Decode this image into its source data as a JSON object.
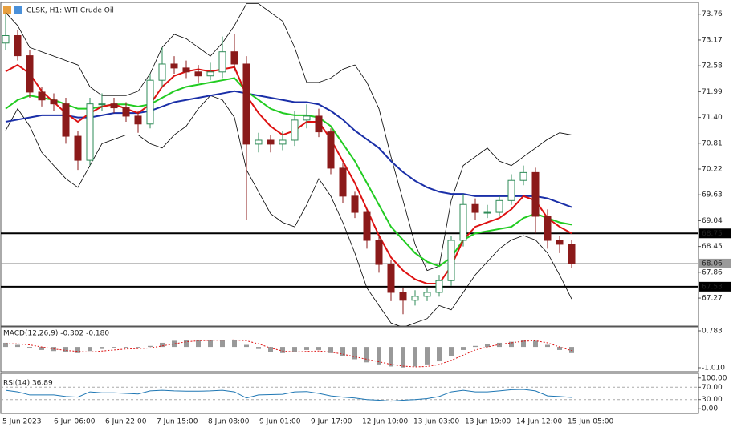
{
  "chart_data": [
    {
      "type": "candlestick",
      "title": "CLSK, H1: WTI Crude Oil",
      "ylim": [
        66.63,
        74.03
      ],
      "yticks": [
        73.76,
        73.17,
        72.58,
        71.99,
        {
          "value": 71.4,
          "label": "71.40"
        },
        70.81,
        70.22,
        69.63,
        69.04,
        68.45,
        67.86,
        67.27
      ],
      "open": [
        73.1,
        73.27,
        72.81,
        71.98,
        71.8,
        71.71,
        70.97,
        70.42,
        71.71,
        71.71,
        71.62,
        71.43,
        71.25,
        72.25,
        72.62,
        72.53,
        72.44,
        72.35,
        72.44,
        72.9,
        72.62,
        70.79,
        70.88,
        70.79,
        70.88,
        71.34,
        71.43,
        71.07,
        70.24,
        69.6,
        69.23,
        68.59,
        68.04,
        67.4,
        67.22,
        67.31,
        67.4,
        67.67,
        68.59,
        69.41,
        69.23,
        69.23,
        69.5,
        69.96,
        70.14,
        69.14,
        68.59,
        68.5
      ],
      "high": [
        73.75,
        73.4,
        72.95,
        72.1,
        71.95,
        71.85,
        71.1,
        71.85,
        71.95,
        71.85,
        71.75,
        71.55,
        72.4,
        73.0,
        72.8,
        72.7,
        72.6,
        72.65,
        73.25,
        73.3,
        72.8,
        71.05,
        71.0,
        71.1,
        71.55,
        71.7,
        71.6,
        71.15,
        70.35,
        69.7,
        69.3,
        68.7,
        68.15,
        67.5,
        67.45,
        67.5,
        67.8,
        68.7,
        69.65,
        69.55,
        69.4,
        69.6,
        70.1,
        70.3,
        70.25,
        69.3,
        68.7,
        68.6
      ],
      "low": [
        72.95,
        72.7,
        71.85,
        71.65,
        71.55,
        70.8,
        70.2,
        70.3,
        71.55,
        71.5,
        71.3,
        71.05,
        71.15,
        72.1,
        72.4,
        72.3,
        72.2,
        72.25,
        72.3,
        72.45,
        69.05,
        70.6,
        70.6,
        70.65,
        70.75,
        71.15,
        70.95,
        70.1,
        69.45,
        69.1,
        68.4,
        67.85,
        67.2,
        66.9,
        67.1,
        67.2,
        67.3,
        67.55,
        68.45,
        69.05,
        69.1,
        69.15,
        69.4,
        69.85,
        68.75,
        68.4,
        68.3,
        67.95
      ],
      "close": [
        73.27,
        72.81,
        71.98,
        71.8,
        71.71,
        70.97,
        70.42,
        71.71,
        71.71,
        71.62,
        71.43,
        71.25,
        72.25,
        72.62,
        72.53,
        72.44,
        72.35,
        72.44,
        72.9,
        72.62,
        70.79,
        70.88,
        70.79,
        70.88,
        71.34,
        71.43,
        71.07,
        70.24,
        69.6,
        69.23,
        68.59,
        68.04,
        67.4,
        67.22,
        67.31,
        67.4,
        67.67,
        68.59,
        69.41,
        69.23,
        69.23,
        69.5,
        69.96,
        70.14,
        69.14,
        68.59,
        68.5,
        68.06
      ],
      "up_color": "#2e8b57",
      "down_color": "#8b1a1a",
      "lines": [
        {
          "color": "#000000",
          "width": 0.8,
          "values": [
            73.8,
            73.5,
            73.0,
            72.9,
            72.8,
            72.7,
            72.6,
            72.1,
            71.9,
            71.9,
            71.9,
            72.0,
            72.4,
            73.0,
            73.3,
            73.2,
            73.0,
            72.8,
            73.1,
            73.5,
            74.0,
            74.0,
            73.8,
            73.6,
            73.0,
            72.2,
            72.2,
            72.3,
            72.5,
            72.6,
            72.2,
            71.6,
            70.5,
            69.5,
            68.5,
            67.9,
            68.0,
            69.5,
            70.3,
            70.5,
            70.7,
            70.4,
            70.3,
            70.5,
            70.7,
            70.9,
            71.05,
            71.0
          ]
        },
        {
          "color": "#000000",
          "width": 0.8,
          "values": [
            71.1,
            71.6,
            71.2,
            70.6,
            70.3,
            70.0,
            69.8,
            70.3,
            70.8,
            70.9,
            71.0,
            71.0,
            70.8,
            70.7,
            71.0,
            71.2,
            71.6,
            71.9,
            71.8,
            71.4,
            70.2,
            69.7,
            69.2,
            69.0,
            68.9,
            69.4,
            70.0,
            69.6,
            69.0,
            68.3,
            67.5,
            67.1,
            66.7,
            66.6,
            66.7,
            66.8,
            67.1,
            67.0,
            67.4,
            67.8,
            68.1,
            68.4,
            68.6,
            68.7,
            68.6,
            68.3,
            67.8,
            67.25
          ]
        },
        {
          "color": "#1a2fa8",
          "width": 2,
          "values": [
            71.3,
            71.35,
            71.4,
            71.45,
            71.45,
            71.45,
            71.4,
            71.4,
            71.45,
            71.5,
            71.5,
            71.5,
            71.55,
            71.65,
            71.75,
            71.8,
            71.85,
            71.9,
            71.95,
            72.0,
            71.95,
            71.9,
            71.85,
            71.8,
            71.75,
            71.75,
            71.7,
            71.55,
            71.35,
            71.1,
            70.9,
            70.7,
            70.4,
            70.15,
            69.95,
            69.8,
            69.7,
            69.65,
            69.65,
            69.6,
            69.6,
            69.6,
            69.6,
            69.6,
            69.6,
            69.55,
            69.45,
            69.35
          ]
        },
        {
          "color": "#22cc22",
          "width": 2,
          "values": [
            71.6,
            71.8,
            71.9,
            71.85,
            71.8,
            71.7,
            71.6,
            71.6,
            71.65,
            71.7,
            71.7,
            71.65,
            71.7,
            71.85,
            72.0,
            72.1,
            72.15,
            72.2,
            72.25,
            72.3,
            72.0,
            71.8,
            71.6,
            71.5,
            71.45,
            71.45,
            71.4,
            71.2,
            70.8,
            70.4,
            69.9,
            69.4,
            68.9,
            68.6,
            68.3,
            68.1,
            68.0,
            68.2,
            68.6,
            68.75,
            68.8,
            68.85,
            68.9,
            69.1,
            69.2,
            69.1,
            69.0,
            68.95
          ]
        },
        {
          "color": "#dd1111",
          "width": 2,
          "values": [
            72.45,
            72.6,
            72.4,
            72.0,
            71.75,
            71.5,
            71.3,
            71.5,
            71.65,
            71.7,
            71.6,
            71.5,
            71.7,
            72.1,
            72.35,
            72.45,
            72.5,
            72.45,
            72.5,
            72.55,
            71.9,
            71.5,
            71.2,
            71.0,
            71.1,
            71.3,
            71.3,
            70.9,
            70.4,
            69.9,
            69.3,
            68.7,
            68.2,
            67.9,
            67.7,
            67.6,
            67.6,
            68.0,
            68.6,
            68.9,
            69.0,
            69.1,
            69.3,
            69.6,
            69.5,
            69.1,
            68.9,
            68.75
          ]
        }
      ],
      "hlines": [
        {
          "value": 68.75,
          "color": "#000000"
        },
        {
          "value": 67.53,
          "color": "#000000"
        },
        {
          "value": 68.06,
          "color": "#9a9a9a"
        }
      ],
      "xtick_labels": [
        "5 Jun 2023",
        "6 Jun 06:00",
        "6 Jun 22:00",
        "7 Jun 15:00",
        "8 Jun 08:00",
        "9 Jun 01:00",
        "9 Jun 17:00",
        "12 Jun 10:00",
        "13 Jun 03:00",
        "13 Jun 19:00",
        "14 Jun 12:00",
        "15 Jun 05:00"
      ]
    },
    {
      "type": "macd",
      "title": "MACD(12,26,9) -0.302 -0.180",
      "ylim": [
        -1.205,
        0.978
      ],
      "yticks": [
        0.783,
        {
          "value": -1.01,
          "label": "-1.010"
        }
      ],
      "color": "#999999",
      "signal_color": "#dd1111",
      "values": [
        0.2,
        0.1,
        -0.05,
        -0.15,
        -0.2,
        -0.25,
        -0.3,
        -0.2,
        -0.1,
        -0.05,
        -0.05,
        -0.05,
        0.05,
        0.2,
        0.3,
        0.35,
        0.35,
        0.35,
        0.35,
        0.35,
        0.1,
        -0.1,
        -0.25,
        -0.3,
        -0.25,
        -0.15,
        -0.15,
        -0.3,
        -0.45,
        -0.6,
        -0.75,
        -0.85,
        -0.95,
        -1.0,
        -0.95,
        -0.85,
        -0.7,
        -0.45,
        -0.15,
        0.05,
        0.15,
        0.2,
        0.25,
        0.35,
        0.3,
        0.1,
        -0.15,
        -0.3
      ],
      "signal": [
        0.15,
        0.15,
        0.1,
        0.0,
        -0.1,
        -0.17,
        -0.22,
        -0.25,
        -0.2,
        -0.15,
        -0.1,
        -0.08,
        -0.05,
        0.05,
        0.15,
        0.25,
        0.3,
        0.32,
        0.33,
        0.34,
        0.3,
        0.15,
        -0.05,
        -0.2,
        -0.25,
        -0.22,
        -0.2,
        -0.25,
        -0.35,
        -0.48,
        -0.6,
        -0.72,
        -0.85,
        -0.93,
        -0.97,
        -0.95,
        -0.85,
        -0.65,
        -0.4,
        -0.15,
        0.0,
        0.12,
        0.2,
        0.28,
        0.3,
        0.2,
        0.0,
        -0.18
      ]
    },
    {
      "type": "rsi",
      "title": "RSI(14) 36.89",
      "ylim": [
        -15,
        115
      ],
      "yticks": [
        {
          "value": 100,
          "label": "100.00"
        },
        {
          "value": 70,
          "label": "70.00"
        },
        {
          "value": 30,
          "label": "30.00"
        },
        {
          "value": 0,
          "label": "0.00"
        }
      ],
      "color": "#1f77b4",
      "values": [
        60,
        55,
        45,
        45,
        45,
        40,
        38,
        55,
        52,
        52,
        50,
        48,
        58,
        60,
        58,
        57,
        57,
        58,
        60,
        55,
        35,
        45,
        46,
        47,
        55,
        56,
        50,
        42,
        38,
        35,
        30,
        28,
        25,
        28,
        30,
        33,
        40,
        55,
        60,
        55,
        55,
        58,
        62,
        63,
        58,
        42,
        40,
        36.89
      ]
    }
  ]
}
